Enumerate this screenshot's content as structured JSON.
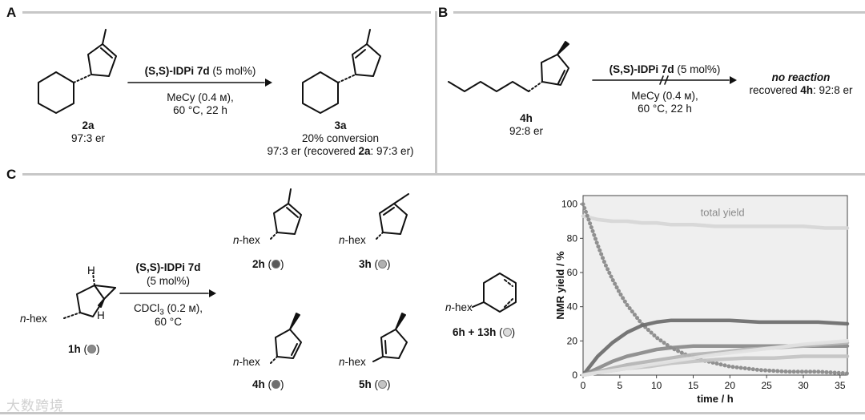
{
  "panelA": {
    "label": "A",
    "conditions_catalyst_ss": "(S,S)",
    "conditions_catalyst_name": "-IDPi 7d",
    "conditions_catalyst_loading": " (5 mol%)",
    "conditions_line2": "MeCy (0.4 м),",
    "conditions_line3": "60 °C, 22 h",
    "reactant_id": "2a",
    "reactant_er": "97:3 er",
    "product_id": "3a",
    "product_conv": "20% conversion",
    "product_er_a": "97:3 er (recovered ",
    "product_er_b": "2a",
    "product_er_c": ": 97:3 er)"
  },
  "panelB": {
    "label": "B",
    "conditions_catalyst_ss": "(S,S)",
    "conditions_catalyst_name": "-IDPi 7d",
    "conditions_catalyst_loading": " (5 mol%)",
    "conditions_line2": "MeCy (0.4 м),",
    "conditions_line3": "60 °C, 22 h",
    "reactant_id": "4h",
    "reactant_er": "92:8 er",
    "result": "no reaction",
    "recovered_a": "recovered ",
    "recovered_b": "4h",
    "recovered_c": ": 92:8 er"
  },
  "panelC": {
    "label": "C",
    "catalyst_ss": "(S,S)",
    "catalyst_name": "-IDPi 7d",
    "catalyst_loading": "(5 mol%)",
    "solvent_a": "CDCl",
    "solvent_sub": "3",
    "solvent_b": " (0.2 м),",
    "temp": "60 °C",
    "substituent": "n-hex",
    "substituent_n": "n",
    "substituent_rest": "-hex",
    "sm_id": "1h",
    "p2h": "2h",
    "p3h": "3h",
    "p4h": "4h",
    "p5h": "5h",
    "p6h": "6h + 13h",
    "H_label": "H",
    "colors": {
      "1h": "#8a8a8a",
      "2h": "#5a5a5a",
      "3h": "#b0b0b0",
      "4h": "#6f6f6f",
      "5h": "#c4c4c4",
      "6h": "#dcdcdc"
    }
  },
  "chart_data": {
    "type": "line",
    "xlabel": "time / h",
    "ylabel": "NMR yield / %",
    "xlim": [
      0,
      36
    ],
    "ylim": [
      0,
      105
    ],
    "xticks": [
      0,
      5,
      10,
      15,
      20,
      25,
      30,
      35
    ],
    "yticks": [
      0,
      20,
      40,
      60,
      80,
      100
    ],
    "annotation": "total yield",
    "series": [
      {
        "key": "total",
        "color": "#d6d6d6",
        "x": [
          0,
          1,
          2,
          4,
          6,
          8,
          10,
          12,
          15,
          18,
          21,
          24,
          27,
          30,
          33,
          36
        ],
        "y": [
          93,
          92,
          91,
          90,
          90,
          89,
          89,
          88,
          88,
          87,
          87,
          87,
          87,
          87,
          86,
          86
        ]
      },
      {
        "key": "1h",
        "color": "#8a8a8a",
        "x": [
          0,
          1,
          2,
          3,
          4,
          5,
          6,
          8,
          10,
          12,
          14,
          16,
          18,
          20,
          24,
          28,
          32,
          36
        ],
        "y": [
          100,
          88,
          76,
          65,
          56,
          48,
          41,
          30,
          22,
          16,
          12,
          9,
          7,
          5,
          3,
          2,
          2,
          1
        ]
      },
      {
        "key": "4h",
        "color": "#6f6f6f",
        "x": [
          0,
          2,
          4,
          6,
          8,
          10,
          12,
          14,
          16,
          18,
          20,
          24,
          28,
          32,
          36
        ],
        "y": [
          0,
          11,
          19,
          25,
          29,
          31,
          32,
          32,
          32,
          32,
          32,
          31,
          31,
          31,
          30
        ]
      },
      {
        "key": "2h",
        "color": "#8c8c8c",
        "x": [
          0,
          2,
          4,
          6,
          8,
          10,
          12,
          15,
          18,
          21,
          24,
          28,
          32,
          36
        ],
        "y": [
          0,
          4,
          8,
          11,
          13,
          15,
          16,
          17,
          17,
          17,
          17,
          17,
          17,
          17
        ]
      },
      {
        "key": "3h",
        "color": "#b5b5b5",
        "x": [
          0,
          3,
          6,
          9,
          12,
          15,
          18,
          22,
          26,
          30,
          36
        ],
        "y": [
          0,
          3,
          6,
          8,
          10,
          12,
          13,
          15,
          16,
          17,
          19
        ]
      },
      {
        "key": "5h",
        "color": "#c4c4c4",
        "x": [
          0,
          3,
          6,
          9,
          12,
          15,
          18,
          22,
          26,
          30,
          36
        ],
        "y": [
          0,
          2,
          4,
          5,
          7,
          8,
          9,
          10,
          10,
          11,
          11
        ]
      },
      {
        "key": "6h",
        "color": "#e2e2e2",
        "x": [
          0,
          3,
          6,
          9,
          12,
          15,
          18,
          22,
          26,
          30,
          36
        ],
        "y": [
          0,
          2,
          4,
          6,
          8,
          10,
          12,
          14,
          16,
          18,
          20
        ]
      }
    ]
  },
  "watermark": "大数跨境"
}
